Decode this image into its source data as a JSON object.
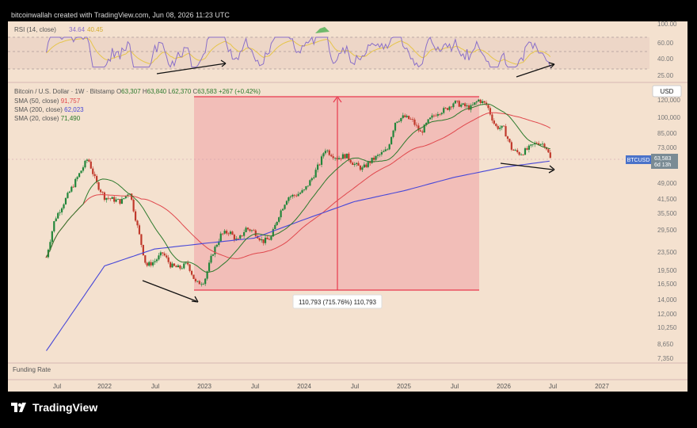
{
  "attribution": "bitcoinwallah created with TradingView.com, Jun 08, 2026 11:23 UTC",
  "brand": "TradingView",
  "colors": {
    "background": "#f4e1cf",
    "candle_up": "#22863a",
    "candle_down": "#c0392b",
    "sma50": "#e0484d",
    "sma200": "#4848d8",
    "sma20": "#2d7a2d",
    "rsi": "#8a6fc9",
    "rsi_ma": "#e6c54a",
    "shade": "#f2b2b0",
    "measure": "#e83a4d"
  },
  "legend": {
    "pair": "Bitcoin / U.S. Dollar · 1W · Bitstamp",
    "open_label": "O",
    "open": "63,307",
    "high_label": "H",
    "high": "63,840",
    "low_label": "L",
    "low": "62,370",
    "close_label": "C",
    "close": "63,583",
    "change": "+267 (+0.42%)",
    "sma50_label": "SMA (50, close)",
    "sma50_value": "91,757",
    "sma200_label": "SMA (200, close)",
    "sma200_value": "62,023",
    "sma20_label": "SMA (20, close)",
    "sma20_value": "71,490"
  },
  "rsi": {
    "label": "RSI (14, close)",
    "value1": "34.64",
    "value2": "40.45",
    "levels": [
      "100.00",
      "60.00",
      "40.00",
      "25.00"
    ]
  },
  "currency": "USD",
  "price_tag": {
    "symbol": "BTCUSD",
    "price": "63,583",
    "countdown": "6d 13h"
  },
  "measure_label": "110,793 (715.76%) 110,793",
  "funding_label": "Funding Rate",
  "chart_data": {
    "type": "candlestick",
    "y_scale": "log",
    "y_ticks": [
      "120,000",
      "100,000",
      "85,000",
      "73,000",
      "61,000",
      "49,000",
      "41,500",
      "35,500",
      "29,500",
      "23,500",
      "19,500",
      "16,500",
      "14,000",
      "12,000",
      "10,250",
      "8,650",
      "7,350"
    ],
    "x_ticks": [
      "Jul",
      "2022",
      "Jul",
      "2023",
      "Jul",
      "2024",
      "Jul",
      "2025",
      "Jul",
      "2026",
      "Jul",
      "2027"
    ],
    "series": [
      {
        "name": "SMA (50, close)",
        "last": 91757
      },
      {
        "name": "SMA (200, close)",
        "last": 62023
      },
      {
        "name": "SMA (20, close)",
        "last": 71490
      }
    ],
    "key_points": [
      {
        "date": "2021-11",
        "price": 68000
      },
      {
        "date": "2022-11",
        "price": 15500
      },
      {
        "date": "2024-03",
        "price": 73000
      },
      {
        "date": "2025-10",
        "price": 126000
      },
      {
        "date": "2026-06",
        "price": 63583
      }
    ]
  }
}
